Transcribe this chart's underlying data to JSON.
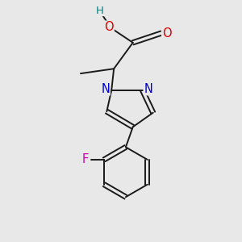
{
  "background_color": "#e8e8e8",
  "bond_color": "#1a1a1a",
  "atom_colors": {
    "O": "#e00000",
    "N": "#0000cc",
    "F": "#cc00aa",
    "H": "#008080",
    "C": "#1a1a1a"
  },
  "font_size": 9.5,
  "linewidth": 1.4,
  "figsize": [
    3.0,
    3.0
  ],
  "dpi": 100
}
